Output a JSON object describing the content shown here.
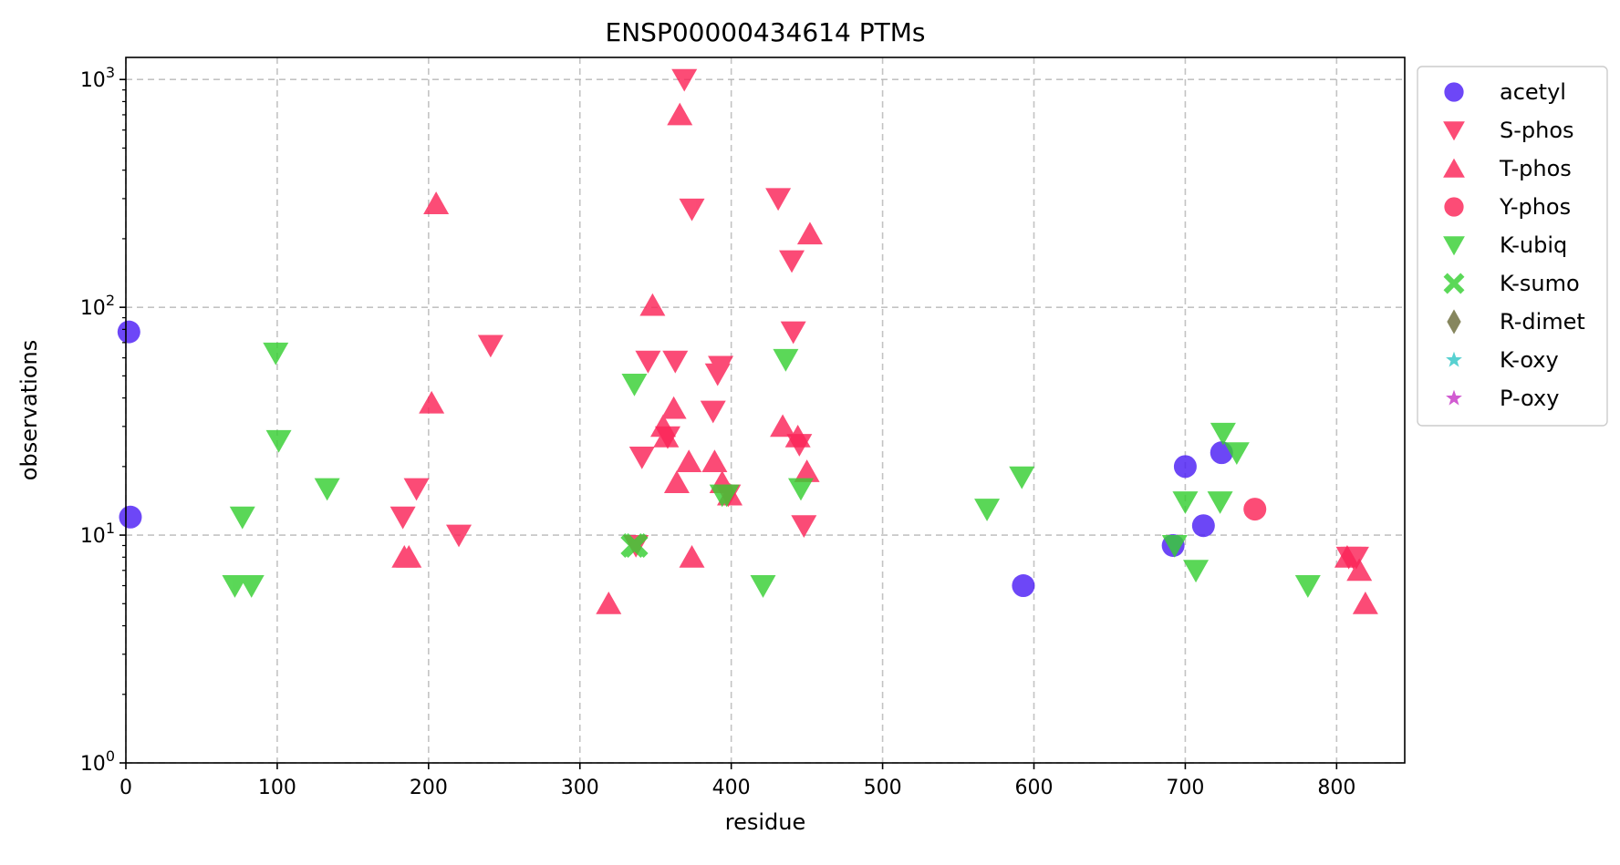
{
  "chart_data": {
    "type": "scatter",
    "title": "ENSP00000434614 PTMs",
    "xlabel": "residue",
    "ylabel": "observations",
    "xlim": [
      0,
      845
    ],
    "ylim": [
      1,
      1250
    ],
    "yscale": "log",
    "grid": true,
    "legend_position": "outside-right",
    "x_ticks": [
      0,
      100,
      200,
      300,
      400,
      500,
      600,
      700,
      800
    ],
    "y_ticks": [
      {
        "value": 1,
        "base": "10",
        "exp": "0"
      },
      {
        "value": 10,
        "base": "10",
        "exp": "1"
      },
      {
        "value": 100,
        "base": "10",
        "exp": "2"
      },
      {
        "value": 1000,
        "base": "10",
        "exp": "3"
      }
    ],
    "series": [
      {
        "name": "acetyl",
        "marker": "circle",
        "color": "#4d1ff5",
        "points": [
          [
            2,
            78
          ],
          [
            3,
            12
          ],
          [
            593,
            6
          ],
          [
            692,
            9
          ],
          [
            700,
            20
          ],
          [
            712,
            11
          ],
          [
            724,
            23
          ]
        ]
      },
      {
        "name": "S-phos",
        "marker": "triangle-down",
        "color": "#fb2458",
        "points": [
          [
            183,
            12
          ],
          [
            192,
            16
          ],
          [
            220,
            10
          ],
          [
            241,
            68
          ],
          [
            337,
            9
          ],
          [
            341,
            22
          ],
          [
            345,
            58
          ],
          [
            358,
            27
          ],
          [
            363,
            58
          ],
          [
            369,
            1000
          ],
          [
            374,
            270
          ],
          [
            388,
            35
          ],
          [
            391,
            51
          ],
          [
            393,
            55
          ],
          [
            398,
            15
          ],
          [
            431,
            300
          ],
          [
            440,
            160
          ],
          [
            441,
            78
          ],
          [
            445,
            25
          ],
          [
            448,
            11
          ],
          [
            808,
            8
          ],
          [
            811,
            8
          ],
          [
            813,
            8
          ]
        ]
      },
      {
        "name": "T-phos",
        "marker": "triangle-up",
        "color": "#fb2458",
        "points": [
          [
            184,
            8
          ],
          [
            187,
            8
          ],
          [
            202,
            38
          ],
          [
            205,
            285
          ],
          [
            319,
            5
          ],
          [
            348,
            102
          ],
          [
            355,
            30
          ],
          [
            357,
            27
          ],
          [
            362,
            36
          ],
          [
            364,
            17
          ],
          [
            366,
            700
          ],
          [
            372,
            21
          ],
          [
            374,
            8
          ],
          [
            389,
            21
          ],
          [
            394,
            17
          ],
          [
            399,
            15
          ],
          [
            434,
            30
          ],
          [
            444,
            27
          ],
          [
            450,
            19
          ],
          [
            452,
            210
          ],
          [
            807,
            8
          ],
          [
            815,
            7
          ],
          [
            819,
            5
          ]
        ]
      },
      {
        "name": "Y-phos",
        "marker": "circle",
        "color": "#fb2458",
        "points": [
          [
            746,
            13
          ]
        ]
      },
      {
        "name": "K-ubiq",
        "marker": "triangle-down",
        "color": "#37cf33",
        "points": [
          [
            72,
            6
          ],
          [
            77,
            12
          ],
          [
            83,
            6
          ],
          [
            99,
            63
          ],
          [
            101,
            26
          ],
          [
            133,
            16
          ],
          [
            336,
            46
          ],
          [
            394,
            15
          ],
          [
            397,
            15
          ],
          [
            421,
            6
          ],
          [
            436,
            59
          ],
          [
            446,
            16
          ],
          [
            569,
            13
          ],
          [
            592,
            18
          ],
          [
            693,
            9
          ],
          [
            700,
            14
          ],
          [
            707,
            7
          ],
          [
            723,
            14
          ],
          [
            725,
            28
          ],
          [
            734,
            23
          ],
          [
            781,
            6
          ]
        ]
      },
      {
        "name": "K-sumo",
        "marker": "x",
        "color": "#37cf33",
        "points": [
          [
            335,
            9
          ],
          [
            337,
            9
          ]
        ]
      },
      {
        "name": "R-dimet",
        "marker": "diamond",
        "color": "#6b6b3a",
        "points": []
      },
      {
        "name": "K-oxy",
        "marker": "star",
        "color": "#33c7c7",
        "points": []
      },
      {
        "name": "P-oxy",
        "marker": "star",
        "color": "#c737c7",
        "points": []
      }
    ]
  }
}
